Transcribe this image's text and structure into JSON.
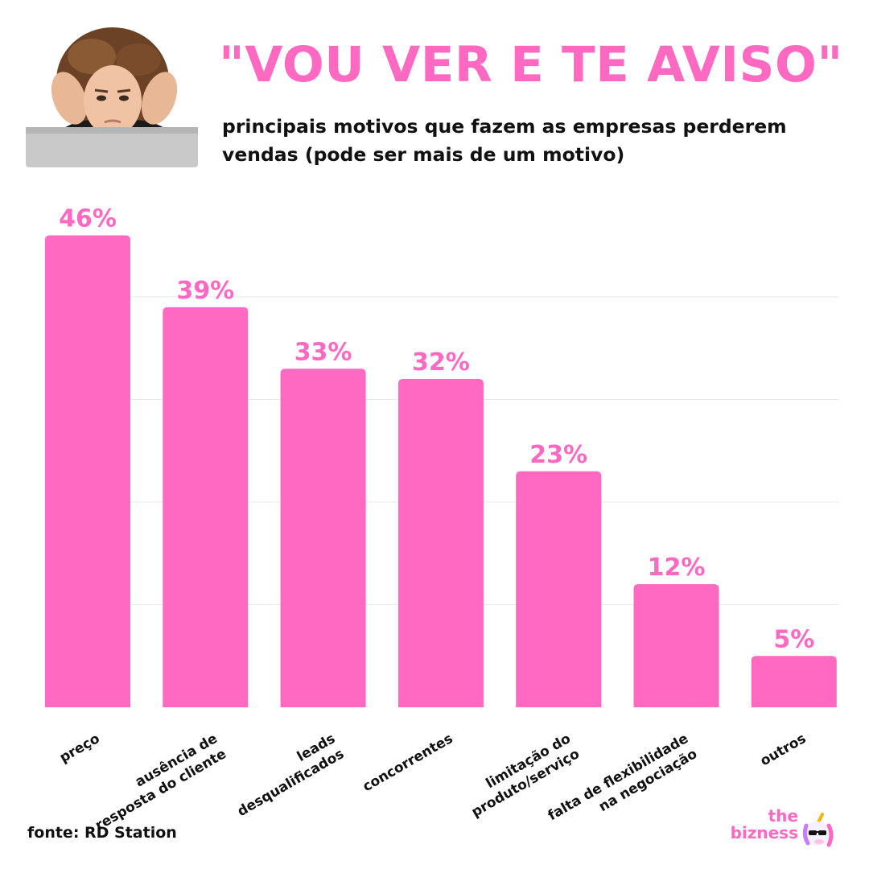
{
  "header": {
    "title": "\"VOU VER E TE AVISO\"",
    "subtitle_line1": "principais motivos que fazem as empresas perderem",
    "subtitle_line2": "vendas (pode ser mais de um motivo)"
  },
  "footer": {
    "source": "fonte: RD Station",
    "brand_line1": "the",
    "brand_line2": "bizness",
    "brand_icon": "unicorn-sunglasses-icon"
  },
  "photo": {
    "icon": "stressed-woman-laptop-photo"
  },
  "colors": {
    "accent": "#ff69c2",
    "bar": "#ff69c2",
    "text": "#111111",
    "grid": "#e9e9e9"
  },
  "chart_data": {
    "type": "bar",
    "title": "principais motivos que fazem as empresas perderem vendas (pode ser mais de um motivo)",
    "categories": [
      [
        "preço"
      ],
      [
        "ausência de",
        "resposta do cliente"
      ],
      [
        "leads",
        "desqualificados"
      ],
      [
        "concorrentes"
      ],
      [
        "limitação do",
        "produto/serviço"
      ],
      [
        "falta de flexibilidade",
        "na negociação"
      ],
      [
        "outros"
      ]
    ],
    "values": [
      46,
      39,
      33,
      32,
      23,
      12,
      5
    ],
    "value_labels": [
      "46%",
      "39%",
      "33%",
      "32%",
      "23%",
      "12%",
      "5%"
    ],
    "unit": "%",
    "ylim": [
      0,
      50
    ],
    "grid": true,
    "xlabel": "",
    "ylabel": ""
  }
}
